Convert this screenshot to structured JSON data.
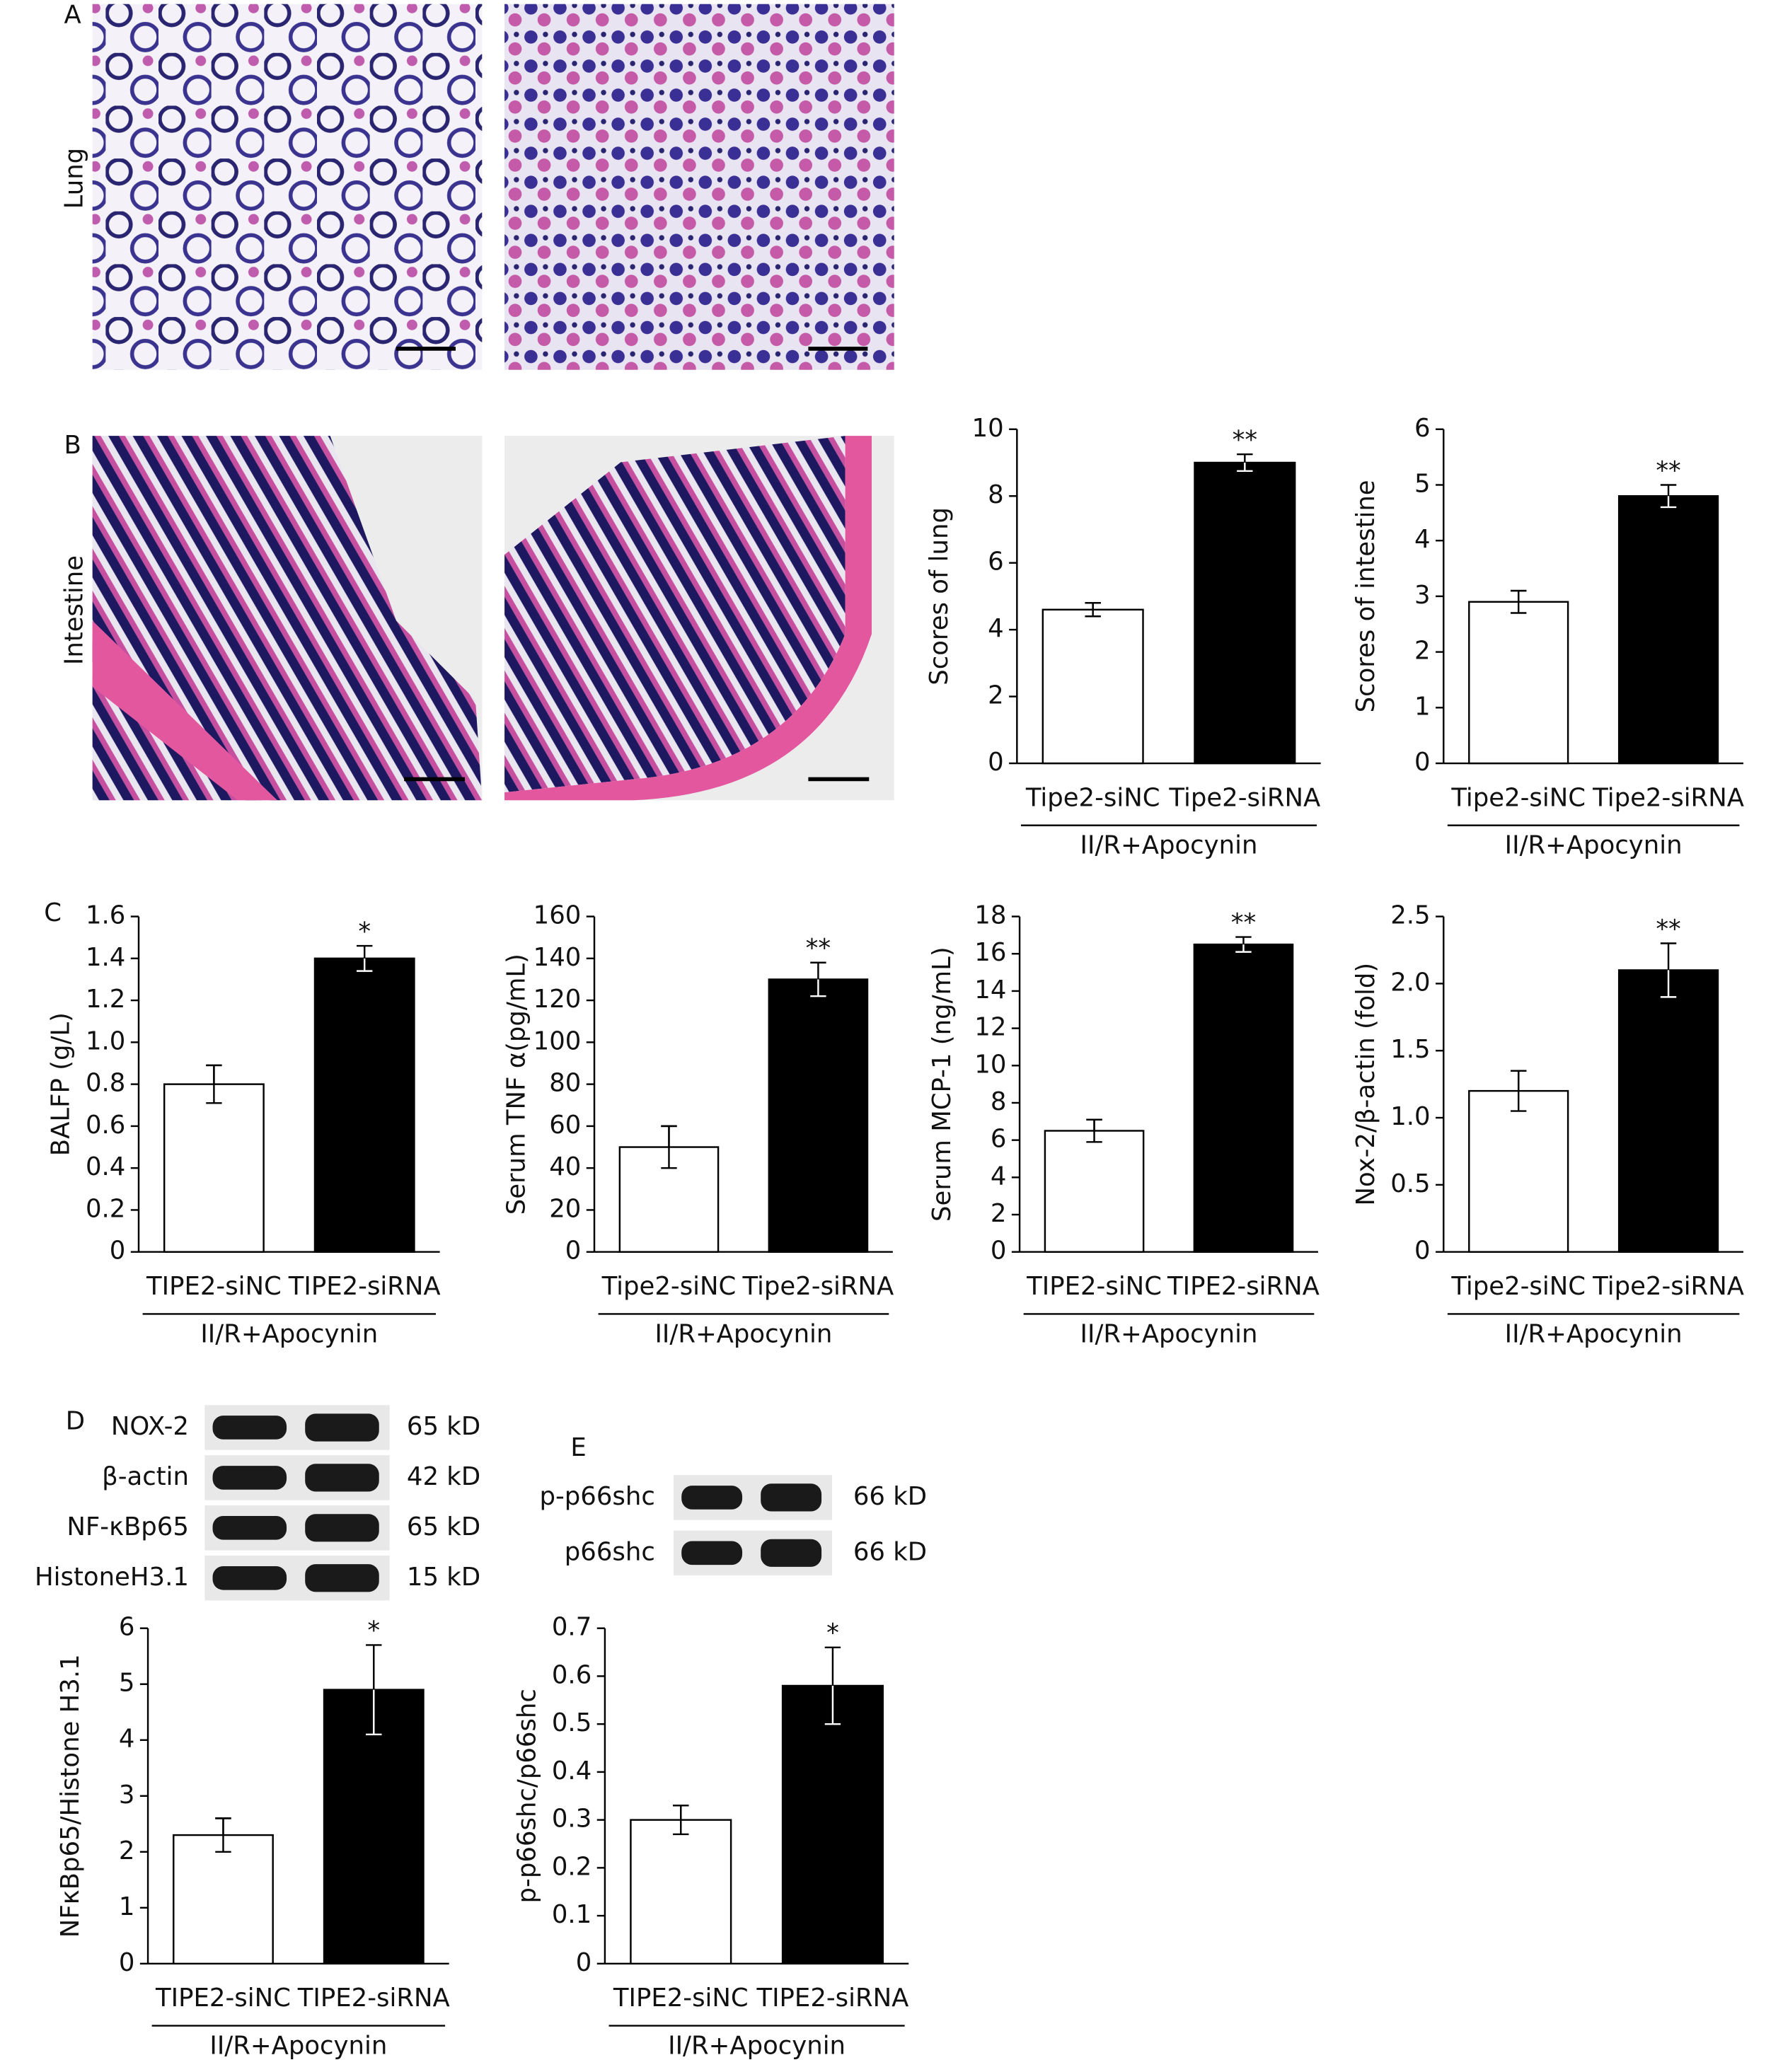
{
  "panel_labels": [
    "A",
    "B",
    "C",
    "D",
    "E"
  ],
  "histology": {
    "lung_label": "Lung",
    "intestine_label": "Intestine"
  },
  "blots": [
    {
      "rows": [
        {
          "label": "NOX-2",
          "size": "65 kD"
        },
        {
          "label": "β-actin",
          "size": "42 kD"
        },
        {
          "label": "NF-κBp65",
          "size": "65 kD"
        },
        {
          "label": "HistoneH3.1",
          "size": "15 kD"
        }
      ]
    },
    {
      "rows": [
        {
          "label": "p-p66shc",
          "size": "66 kD"
        },
        {
          "label": "p66shc",
          "size": "66 kD"
        }
      ]
    }
  ],
  "chart_data": [
    {
      "type": "bar",
      "ylabel": "Scores of lung",
      "group_label": "II/R+Apocynin",
      "categories": [
        "Tipe2-siNC",
        "Tipe2-siRNA"
      ],
      "values": [
        4.6,
        9.0
      ],
      "errors": [
        0.2,
        0.25
      ],
      "annotations": [
        null,
        "**"
      ],
      "colors": [
        "#ffffff",
        "#000000"
      ],
      "ylim": [
        0,
        10
      ],
      "yticks": [
        0,
        2,
        4,
        6,
        8,
        10
      ]
    },
    {
      "type": "bar",
      "ylabel": "Scores of intestine",
      "group_label": "II/R+Apocynin",
      "categories": [
        "Tipe2-siNC",
        "Tipe2-siRNA"
      ],
      "values": [
        2.9,
        4.8
      ],
      "errors": [
        0.2,
        0.2
      ],
      "annotations": [
        null,
        "**"
      ],
      "colors": [
        "#ffffff",
        "#000000"
      ],
      "ylim": [
        0,
        6
      ],
      "yticks": [
        0,
        1,
        2,
        3,
        4,
        5,
        6
      ]
    },
    {
      "type": "bar",
      "ylabel": "BALFP  (g/L)",
      "group_label": "II/R+Apocynin",
      "categories": [
        "TIPE2-siNC",
        "TIPE2-siRNA"
      ],
      "values": [
        0.8,
        1.4
      ],
      "errors": [
        0.09,
        0.06
      ],
      "annotations": [
        null,
        "*"
      ],
      "colors": [
        "#ffffff",
        "#000000"
      ],
      "ylim": [
        0,
        1.6
      ],
      "yticks": [
        0,
        0.2,
        0.4,
        0.6,
        0.8,
        {
          "value": 1,
          "label": "1.0"
        },
        1.2,
        1.4,
        1.6
      ]
    },
    {
      "type": "bar",
      "ylabel": "Serum TNF α(pg/mL)",
      "group_label": "II/R+Apocynin",
      "categories": [
        "Tipe2-siNC",
        "Tipe2-siRNA"
      ],
      "values": [
        50,
        130
      ],
      "errors": [
        10,
        8
      ],
      "annotations": [
        null,
        "**"
      ],
      "colors": [
        "#ffffff",
        "#000000"
      ],
      "ylim": [
        0,
        160
      ],
      "yticks": [
        0,
        20,
        40,
        60,
        80,
        100,
        120,
        140,
        160
      ]
    },
    {
      "type": "bar",
      "ylabel": "Serum MCP-1 (ng/mL)",
      "group_label": "II/R+Apocynin",
      "categories": [
        "TIPE2-siNC",
        "TIPE2-siRNA"
      ],
      "values": [
        6.5,
        16.5
      ],
      "errors": [
        0.6,
        0.4
      ],
      "annotations": [
        null,
        "**"
      ],
      "colors": [
        "#ffffff",
        "#000000"
      ],
      "ylim": [
        0,
        18
      ],
      "yticks": [
        0,
        2,
        4,
        6,
        8,
        10,
        12,
        14,
        16,
        18
      ]
    },
    {
      "type": "bar",
      "ylabel": "Nox-2/β-actin (fold)",
      "group_label": "II/R+Apocynin",
      "categories": [
        "Tipe2-siNC",
        "Tipe2-siRNA"
      ],
      "values": [
        1.2,
        2.1
      ],
      "errors": [
        0.15,
        0.2
      ],
      "annotations": [
        null,
        "**"
      ],
      "colors": [
        "#ffffff",
        "#000000"
      ],
      "ylim": [
        0,
        2.5
      ],
      "yticks": [
        0,
        0.5,
        {
          "value": 1,
          "label": "1.0"
        },
        1.5,
        {
          "value": 2,
          "label": "2.0"
        },
        2.5
      ]
    },
    {
      "type": "bar",
      "ylabel": "NFκBp65/Histone H3.1",
      "group_label": "II/R+Apocynin",
      "categories": [
        "TIPE2-siNC",
        "TIPE2-siRNA"
      ],
      "values": [
        2.3,
        4.9
      ],
      "errors": [
        0.3,
        0.8
      ],
      "annotations": [
        null,
        "*"
      ],
      "colors": [
        "#ffffff",
        "#000000"
      ],
      "ylim": [
        0,
        6
      ],
      "yticks": [
        0,
        1,
        2,
        3,
        4,
        5,
        6
      ]
    },
    {
      "type": "bar",
      "ylabel": "p-p66shc/p66shc",
      "group_label": "II/R+Apocynin",
      "categories": [
        "TIPE2-siNC",
        "TIPE2-siRNA"
      ],
      "values": [
        0.3,
        0.58
      ],
      "errors": [
        0.03,
        0.08
      ],
      "annotations": [
        null,
        "*"
      ],
      "colors": [
        "#ffffff",
        "#000000"
      ],
      "ylim": [
        0,
        0.7
      ],
      "yticks": [
        0,
        0.1,
        0.2,
        0.3,
        0.4,
        0.5,
        0.6,
        0.7
      ]
    }
  ]
}
